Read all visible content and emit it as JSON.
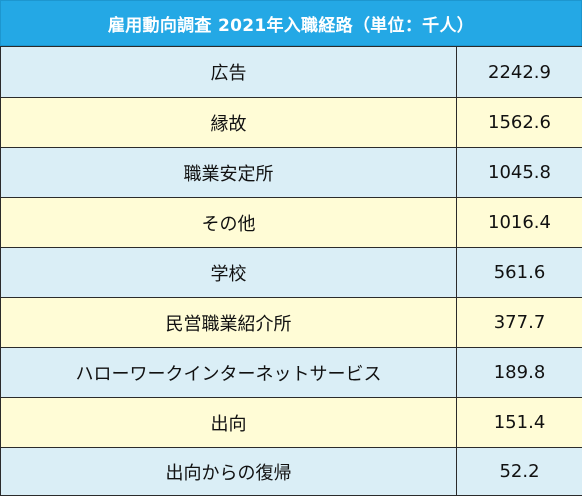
{
  "title": "雇用動向調査 2021年入職経路（単位：千人）",
  "colors": {
    "header_bg": "#24a8e5",
    "row_blue": "#daeef6",
    "row_yellow": "#fffcd6",
    "border": "#2b2b2b"
  },
  "chart_data": {
    "type": "table",
    "title": "雇用動向調査 2021年入職経路（単位：千人）",
    "categories": [
      "広告",
      "縁故",
      "職業安定所",
      "その他",
      "学校",
      "民営職業紹介所",
      "ハローワークインターネットサービス",
      "出向",
      "出向からの復帰"
    ],
    "values": [
      "2242.9",
      "1562.6",
      "1045.8",
      "1016.4",
      "561.6",
      "377.7",
      "189.8",
      "151.4",
      "52.2"
    ]
  }
}
